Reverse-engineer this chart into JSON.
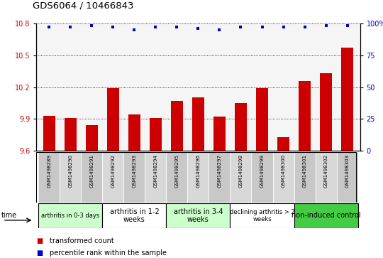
{
  "title": "GDS6064 / 10466843",
  "samples": [
    "GSM1498289",
    "GSM1498290",
    "GSM1498291",
    "GSM1498292",
    "GSM1498293",
    "GSM1498294",
    "GSM1498295",
    "GSM1498296",
    "GSM1498297",
    "GSM1498298",
    "GSM1498299",
    "GSM1498300",
    "GSM1498301",
    "GSM1498302",
    "GSM1498303"
  ],
  "transformed_count": [
    9.93,
    9.91,
    9.84,
    10.19,
    9.94,
    9.91,
    10.07,
    10.1,
    9.92,
    10.05,
    10.19,
    9.73,
    10.26,
    10.33,
    10.57
  ],
  "percentile_rank": [
    97,
    97,
    98,
    97,
    95,
    97,
    97,
    96,
    95,
    97,
    97,
    97,
    97,
    98,
    98
  ],
  "ylim_left": [
    9.6,
    10.8
  ],
  "ylim_right": [
    0,
    100
  ],
  "yticks_left": [
    9.6,
    9.9,
    10.2,
    10.5,
    10.8
  ],
  "yticks_right": [
    0,
    25,
    50,
    75,
    100
  ],
  "bar_color": "#cc0000",
  "dot_color": "#0000cc",
  "groups": [
    {
      "label": "arthritis in 0-3 days",
      "start": 0,
      "end": 3,
      "color": "#ccffcc",
      "fontsize": 6
    },
    {
      "label": "arthritis in 1-2\nweeks",
      "start": 3,
      "end": 6,
      "color": "#ffffff",
      "fontsize": 7
    },
    {
      "label": "arthritis in 3-4\nweeks",
      "start": 6,
      "end": 9,
      "color": "#ccffcc",
      "fontsize": 7
    },
    {
      "label": "declining arthritis > 2\nweeks",
      "start": 9,
      "end": 12,
      "color": "#ffffff",
      "fontsize": 6
    },
    {
      "label": "non-induced control",
      "start": 12,
      "end": 15,
      "color": "#44cc44",
      "fontsize": 7
    }
  ],
  "sample_bg_colors": [
    "#c8c8c8",
    "#d8d8d8"
  ],
  "legend_red_label": "transformed count",
  "legend_blue_label": "percentile rank within the sample",
  "time_label": "time"
}
